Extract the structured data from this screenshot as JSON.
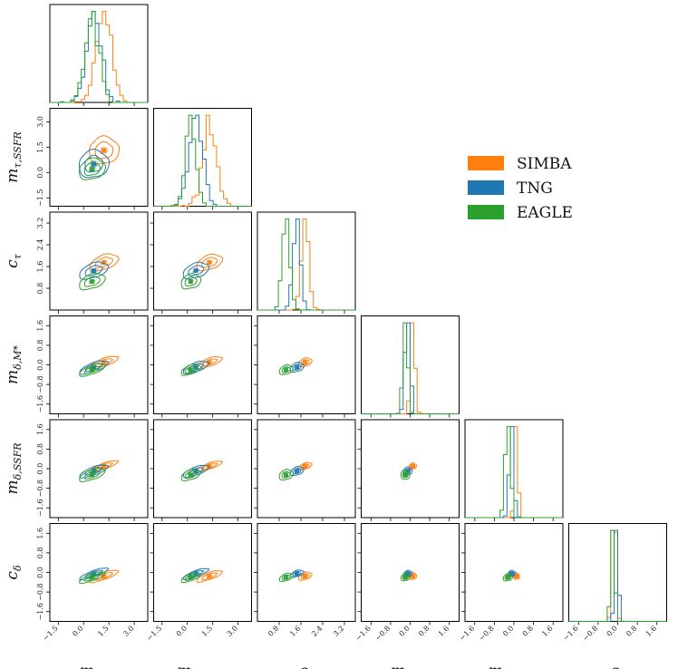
{
  "chart_data": {
    "type": "corner",
    "parameters": [
      {
        "key": "m_tau_Mstar",
        "label": "m",
        "sub": "τ,M*",
        "range": [
          -2.0,
          3.8
        ],
        "ticks": [
          -1.5,
          0.0,
          1.5,
          3.0
        ],
        "tick_labels": [
          "−1.5",
          "0.0",
          "1.5",
          "3.0"
        ]
      },
      {
        "key": "m_tau_SSFR",
        "label": "m",
        "sub": "τ,SSFR",
        "range": [
          -2.0,
          3.8
        ],
        "ticks": [
          -1.5,
          0.0,
          1.5,
          3.0
        ],
        "tick_labels": [
          "−1.5",
          "0.0",
          "1.5",
          "3.0"
        ]
      },
      {
        "key": "c_tau",
        "label": "c",
        "sub": "τ",
        "range": [
          0.0,
          3.6
        ],
        "ticks": [
          0.8,
          1.6,
          2.4,
          3.2
        ],
        "tick_labels": [
          "0.8",
          "1.6",
          "2.4",
          "3.2"
        ]
      },
      {
        "key": "m_delta_Mstar",
        "label": "m",
        "sub": "δ,M*",
        "range": [
          -2.0,
          2.0
        ],
        "ticks": [
          -1.6,
          -0.8,
          0.0,
          0.8,
          1.6
        ],
        "tick_labels": [
          "−1.6",
          "−0.8",
          "0.0",
          "0.8",
          "1.6"
        ]
      },
      {
        "key": "m_delta_SSFR",
        "label": "m",
        "sub": "δ,SSFR",
        "range": [
          -2.0,
          2.0
        ],
        "ticks": [
          -1.6,
          -0.8,
          0.0,
          0.8,
          1.6
        ],
        "tick_labels": [
          "−1.6",
          "−0.8",
          "0.0",
          "0.8",
          "1.6"
        ]
      },
      {
        "key": "c_delta",
        "label": "c",
        "sub": "δ",
        "range": [
          -2.0,
          2.0
        ],
        "ticks": [
          -1.6,
          -0.8,
          0.0,
          0.8,
          1.6
        ],
        "tick_labels": [
          "−1.6",
          "−0.8",
          "0.0",
          "0.8",
          "1.6"
        ]
      }
    ],
    "series": [
      {
        "name": "SIMBA",
        "color": "#ff7f0e",
        "mean": [
          1.2,
          1.3,
          1.75,
          0.1,
          0.1,
          -0.15
        ],
        "sigma": [
          0.45,
          0.4,
          0.13,
          0.08,
          0.06,
          0.07
        ]
      },
      {
        "name": "TNG",
        "color": "#1f77b4",
        "mean": [
          0.6,
          0.5,
          1.45,
          -0.1,
          -0.1,
          -0.05
        ],
        "sigma": [
          0.45,
          0.4,
          0.13,
          0.09,
          0.08,
          0.06
        ]
      },
      {
        "name": "EAGLE",
        "color": "#2ca02c",
        "mean": [
          0.5,
          0.2,
          1.05,
          -0.2,
          -0.25,
          -0.2
        ],
        "sigma": [
          0.4,
          0.3,
          0.13,
          0.09,
          0.1,
          0.07
        ]
      }
    ],
    "legend": {
      "position": "right",
      "entries": [
        "SIMBA",
        "TNG",
        "EAGLE"
      ]
    }
  }
}
